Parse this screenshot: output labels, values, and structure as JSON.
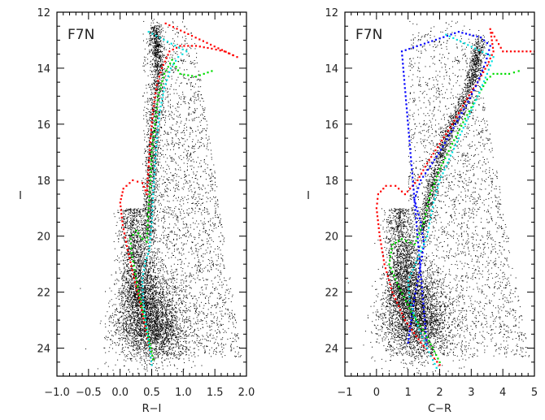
{
  "chart_data": [
    {
      "type": "scatter",
      "title": "F7N",
      "xlabel": "R−I",
      "ylabel": "I",
      "xlim": [
        -1.0,
        2.0
      ],
      "ylim": [
        25,
        12
      ],
      "y_inverted": true,
      "xticks": [
        "−1.0",
        "−0.5",
        "0.0",
        "0.5",
        "1.0",
        "1.5",
        "2.0"
      ],
      "xtick_values": [
        -1.0,
        -0.5,
        0.0,
        0.5,
        1.0,
        1.5,
        2.0
      ],
      "yticks": [
        "12",
        "14",
        "16",
        "18",
        "20",
        "22",
        "24"
      ],
      "ytick_values": [
        12,
        14,
        16,
        18,
        20,
        22,
        24
      ],
      "grid": false,
      "field_stars": {
        "color": "#000000",
        "main_sequence_center": [
          0.45,
          23.0
        ],
        "red_giant_branch": [
          [
            0.45,
            20.0
          ],
          [
            0.5,
            17.0
          ],
          [
            0.6,
            14.0
          ],
          [
            0.55,
            12.5
          ]
        ]
      },
      "series": [
        {
          "color": "#ff0000",
          "points": [
            [
              0.5,
              24.6
            ],
            [
              0.42,
              23.5
            ],
            [
              0.33,
              22.5
            ],
            [
              0.22,
              21.5
            ],
            [
              0.12,
              20.5
            ],
            [
              0.04,
              19.6
            ],
            [
              0.0,
              18.8
            ],
            [
              0.05,
              18.3
            ],
            [
              0.2,
              18.0
            ],
            [
              0.35,
              18.1
            ],
            [
              0.42,
              18.5
            ],
            [
              0.45,
              17.5
            ],
            [
              0.48,
              16.5
            ],
            [
              0.52,
              15.5
            ],
            [
              0.58,
              14.6
            ],
            [
              0.66,
              14.0
            ],
            [
              0.78,
              13.4
            ],
            [
              0.95,
              13.2
            ],
            [
              1.2,
              13.2
            ],
            [
              1.45,
              13.3
            ],
            [
              1.65,
              13.4
            ],
            [
              1.85,
              13.6
            ],
            [
              0.72,
              12.4
            ]
          ]
        },
        {
          "color": "#00dd00",
          "points": [
            [
              0.52,
              24.4
            ],
            [
              0.42,
              23.3
            ],
            [
              0.33,
              22.4
            ],
            [
              0.25,
              21.5
            ],
            [
              0.18,
              20.6
            ],
            [
              0.16,
              20.1
            ],
            [
              0.25,
              19.8
            ],
            [
              0.35,
              20.1
            ],
            [
              0.42,
              20.2
            ],
            [
              0.45,
              19.0
            ],
            [
              0.48,
              18.0
            ],
            [
              0.5,
              17.0
            ],
            [
              0.55,
              16.0
            ],
            [
              0.6,
              15.0
            ],
            [
              0.7,
              14.2
            ],
            [
              0.82,
              13.7
            ],
            [
              0.95,
              14.2
            ],
            [
              1.2,
              14.3
            ],
            [
              1.45,
              14.1
            ]
          ]
        },
        {
          "color": "#00e0e0",
          "points": [
            [
              0.5,
              24.6
            ],
            [
              0.45,
              23.8
            ],
            [
              0.4,
              23.0
            ],
            [
              0.36,
              22.2
            ],
            [
              0.35,
              21.5
            ],
            [
              0.4,
              20.9
            ],
            [
              0.46,
              20.5
            ],
            [
              0.5,
              19.5
            ],
            [
              0.52,
              18.5
            ],
            [
              0.55,
              17.5
            ],
            [
              0.58,
              16.5
            ],
            [
              0.63,
              15.5
            ],
            [
              0.7,
              14.7
            ],
            [
              0.8,
              14.0
            ],
            [
              0.92,
              13.6
            ],
            [
              1.05,
              13.4
            ],
            [
              0.45,
              12.7
            ]
          ]
        }
      ]
    },
    {
      "type": "scatter",
      "title": "F7N",
      "xlabel": "C−R",
      "ylabel": "I",
      "xlim": [
        -1,
        5
      ],
      "ylim": [
        25,
        12
      ],
      "y_inverted": true,
      "xticks": [
        "−1",
        "0",
        "1",
        "2",
        "3",
        "4",
        "5"
      ],
      "xtick_values": [
        -1,
        0,
        1,
        2,
        3,
        4,
        5
      ],
      "yticks": [
        "12",
        "14",
        "16",
        "18",
        "20",
        "22",
        "24"
      ],
      "ytick_values": [
        12,
        14,
        16,
        18,
        20,
        22,
        24
      ],
      "grid": false,
      "field_stars": {
        "color": "#000000",
        "main_sequence_center": [
          1.2,
          22.8
        ],
        "red_giant_branch": [
          [
            1.4,
            20.0
          ],
          [
            2.0,
            17.0
          ],
          [
            3.0,
            14.5
          ],
          [
            3.3,
            13.0
          ]
        ]
      },
      "series": [
        {
          "color": "#ff0000",
          "points": [
            [
              2.0,
              24.6
            ],
            [
              1.4,
              23.8
            ],
            [
              0.9,
              23.0
            ],
            [
              0.5,
              22.0
            ],
            [
              0.25,
              21.0
            ],
            [
              0.1,
              20.0
            ],
            [
              0.0,
              19.0
            ],
            [
              0.05,
              18.5
            ],
            [
              0.3,
              18.2
            ],
            [
              0.6,
              18.2
            ],
            [
              0.9,
              18.5
            ],
            [
              1.3,
              18.0
            ],
            [
              1.6,
              17.4
            ],
            [
              2.0,
              16.7
            ],
            [
              2.4,
              16.0
            ],
            [
              2.8,
              15.2
            ],
            [
              3.2,
              14.5
            ],
            [
              3.5,
              13.9
            ],
            [
              3.7,
              13.4
            ],
            [
              3.6,
              12.6
            ],
            [
              4.0,
              13.4
            ],
            [
              4.5,
              13.4
            ],
            [
              5.0,
              13.4
            ]
          ]
        },
        {
          "color": "#0000ff",
          "points": [
            [
              1.0,
              23.8
            ],
            [
              1.1,
              23.0
            ],
            [
              1.2,
              22.2
            ],
            [
              1.35,
              21.3
            ],
            [
              1.5,
              20.3
            ],
            [
              1.4,
              19.5
            ],
            [
              1.2,
              18.7
            ],
            [
              1.4,
              18.0
            ],
            [
              1.7,
              17.5
            ],
            [
              2.1,
              16.8
            ],
            [
              2.5,
              16.0
            ],
            [
              2.9,
              15.2
            ],
            [
              3.2,
              14.5
            ],
            [
              3.45,
              13.8
            ],
            [
              3.6,
              13.2
            ],
            [
              3.3,
              12.9
            ],
            [
              2.6,
              12.7
            ],
            [
              0.8,
              13.4
            ],
            [
              1.6,
              24.0
            ]
          ]
        },
        {
          "color": "#00dd00",
          "points": [
            [
              2.0,
              24.5
            ],
            [
              1.6,
              23.6
            ],
            [
              1.1,
              22.7
            ],
            [
              0.7,
              21.8
            ],
            [
              0.4,
              21.0
            ],
            [
              0.5,
              20.3
            ],
            [
              0.8,
              20.1
            ],
            [
              1.2,
              20.3
            ],
            [
              1.5,
              19.5
            ],
            [
              1.7,
              18.5
            ],
            [
              2.0,
              17.6
            ],
            [
              2.4,
              16.7
            ],
            [
              2.8,
              15.8
            ],
            [
              3.2,
              15.0
            ],
            [
              3.5,
              14.4
            ],
            [
              3.7,
              14.2
            ],
            [
              4.2,
              14.2
            ],
            [
              4.5,
              14.1
            ]
          ]
        },
        {
          "color": "#00e0e0",
          "points": [
            [
              1.9,
              24.7
            ],
            [
              1.6,
              24.0
            ],
            [
              1.3,
              23.2
            ],
            [
              1.05,
              22.3
            ],
            [
              1.0,
              21.6
            ],
            [
              1.3,
              20.8
            ],
            [
              1.6,
              20.0
            ],
            [
              1.8,
              18.8
            ],
            [
              2.0,
              18.0
            ],
            [
              2.4,
              17.0
            ],
            [
              2.8,
              16.0
            ],
            [
              3.2,
              15.0
            ],
            [
              3.5,
              14.2
            ],
            [
              3.7,
              13.6
            ],
            [
              2.2,
              12.8
            ]
          ]
        }
      ]
    }
  ]
}
